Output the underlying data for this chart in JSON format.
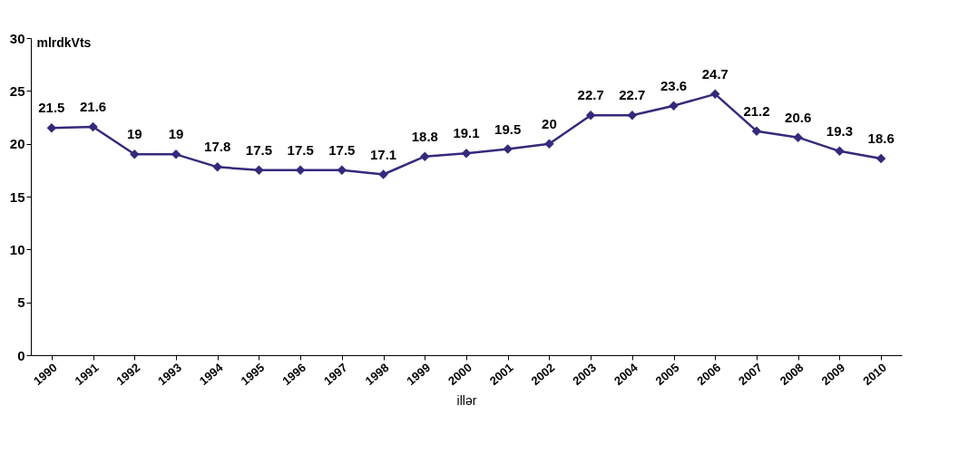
{
  "chart_data": {
    "type": "line",
    "xlabel": "illər",
    "ylabel": "mlrdkVts",
    "categories": [
      "1990",
      "1991",
      "1992",
      "1993",
      "1994",
      "1995",
      "1996",
      "1997",
      "1998",
      "1999",
      "2000",
      "2001",
      "2002",
      "2003",
      "2004",
      "2005",
      "2006",
      "2007",
      "2008",
      "2009",
      "2010"
    ],
    "series": [
      {
        "color": "#332a7c",
        "values": [
          21.5,
          21.6,
          19,
          19,
          17.8,
          17.5,
          17.5,
          17.5,
          17.1,
          18.8,
          19.1,
          19.5,
          20,
          22.7,
          22.7,
          23.6,
          24.7,
          21.2,
          20.6,
          19.3,
          18.6
        ]
      }
    ],
    "ylim": [
      0,
      30
    ],
    "yticks": [
      0,
      5,
      10,
      15,
      20,
      25,
      30
    ],
    "grid": false,
    "legend": false,
    "marker": "diamond",
    "line_style": "solid",
    "data_labels": true
  }
}
